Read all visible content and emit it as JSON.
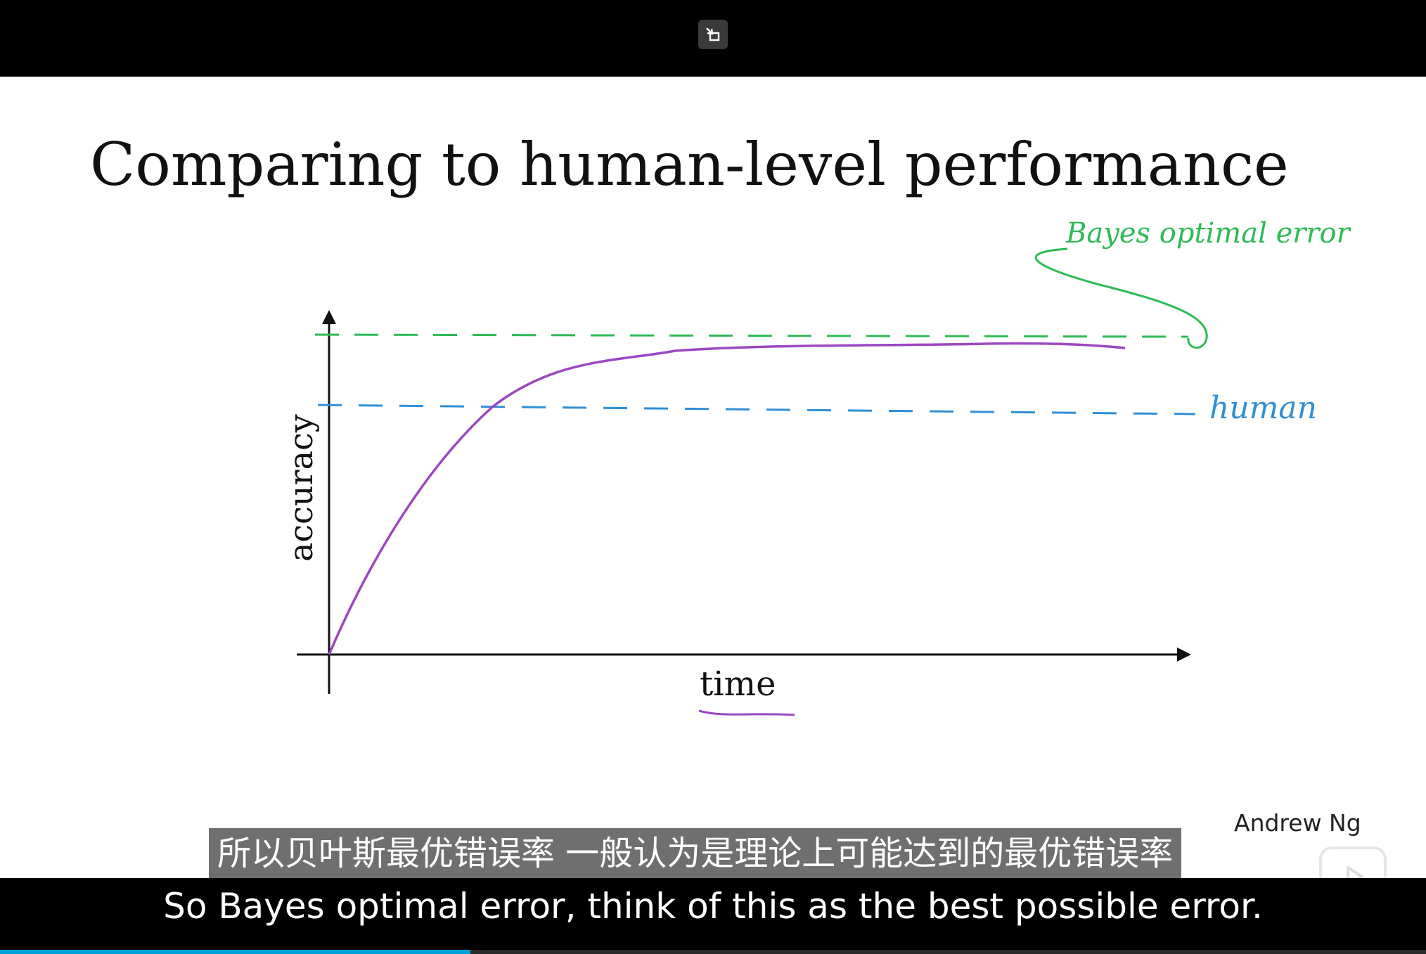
{
  "slide": {
    "title": "Comparing to human-level performance",
    "author": "Andrew Ng",
    "y_axis_label": "accuracy",
    "x_axis_label": "time",
    "bayes_label": "Bayes optimal error",
    "human_label": "human"
  },
  "subtitles": {
    "chinese": "所以贝叶斯最优错误率 一般认为是理论上可能达到的最优错误率",
    "english": "So Bayes optimal error, think of this as the best possible error."
  },
  "player": {
    "progress": 0.33
  },
  "icons": {
    "restore": "restore-window-icon",
    "logo": "play-logo-icon"
  },
  "colors": {
    "bayes_line": "#2dbb55",
    "human_line": "#2f8fd6",
    "curve": "#9b47c2",
    "progress": "#00a1d6"
  }
}
